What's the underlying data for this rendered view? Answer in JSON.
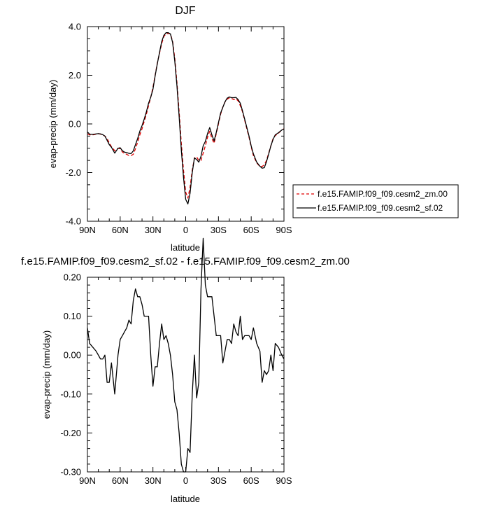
{
  "chart_data": [
    {
      "type": "line",
      "title": "DJF",
      "xlabel": "latitude",
      "ylabel": "evap-precip (mm/day)",
      "xlim": [
        90,
        -90
      ],
      "ylim": [
        -4.0,
        4.0
      ],
      "x_ticks": [
        90,
        60,
        30,
        0,
        -30,
        -60,
        -90
      ],
      "x_tick_labels": [
        "90N",
        "60N",
        "30N",
        "0",
        "30S",
        "60S",
        "90S"
      ],
      "y_ticks": [
        -4.0,
        -2.0,
        0.0,
        2.0,
        4.0
      ],
      "y_tick_labels": [
        "-4.0",
        "-2.0",
        "0.0",
        "2.0",
        "4.0"
      ],
      "legend": "right",
      "colors": {
        "zm": "#e00000",
        "sf": "#000000"
      },
      "series": [
        {
          "name": "f.e15.FAMIP.f09_f09.cesm2_zm.00",
          "style": "dashed",
          "color": "#e00000",
          "x": [
            90,
            88,
            85,
            82,
            80,
            78,
            76,
            74,
            72,
            70,
            68,
            65,
            62,
            60,
            58,
            56,
            54,
            52,
            50,
            48,
            46,
            44,
            42,
            40,
            38,
            36,
            34,
            32,
            30,
            28,
            26,
            24,
            22,
            20,
            18,
            16,
            14,
            12,
            10,
            8,
            6,
            4,
            2,
            0,
            -2,
            -4,
            -6,
            -8,
            -10,
            -12,
            -14,
            -16,
            -18,
            -20,
            -22,
            -24,
            -26,
            -28,
            -30,
            -32,
            -34,
            -36,
            -38,
            -40,
            -42,
            -44,
            -46,
            -48,
            -50,
            -52,
            -54,
            -56,
            -58,
            -60,
            -62,
            -65,
            -68,
            -70,
            -72,
            -74,
            -76,
            -78,
            -80,
            -82,
            -85,
            -88,
            -90
          ],
          "y": [
            -0.4,
            -0.45,
            -0.45,
            -0.42,
            -0.4,
            -0.42,
            -0.45,
            -0.5,
            -0.6,
            -0.78,
            -0.94,
            -1.1,
            -1.0,
            -1.02,
            -1.15,
            -1.22,
            -1.25,
            -1.3,
            -1.3,
            -1.25,
            -1.02,
            -0.75,
            -0.45,
            -0.2,
            0.1,
            0.4,
            0.75,
            1.1,
            1.5,
            2.0,
            2.5,
            2.9,
            3.3,
            3.6,
            3.7,
            3.72,
            3.7,
            3.4,
            2.7,
            1.7,
            0.5,
            -0.8,
            -1.9,
            -2.8,
            -3.05,
            -2.6,
            -1.9,
            -1.4,
            -1.35,
            -1.5,
            -1.5,
            -1.2,
            -0.9,
            -0.55,
            -0.3,
            -0.6,
            -0.8,
            -0.4,
            0.0,
            0.4,
            0.7,
            0.9,
            1.02,
            1.07,
            1.05,
            1.0,
            1.03,
            0.95,
            0.75,
            0.5,
            0.15,
            -0.2,
            -0.55,
            -0.95,
            -1.3,
            -1.6,
            -1.75,
            -1.75,
            -1.68,
            -1.5,
            -1.2,
            -0.9,
            -0.6,
            -0.48,
            -0.38,
            -0.25,
            -0.2
          ]
        },
        {
          "name": "f.e15.FAMIP.f09_f09.cesm2_sf.02",
          "style": "solid",
          "color": "#000000",
          "x": [
            90,
            88,
            85,
            82,
            80,
            78,
            76,
            74,
            72,
            70,
            68,
            65,
            62,
            60,
            58,
            56,
            54,
            52,
            50,
            48,
            46,
            44,
            42,
            40,
            38,
            36,
            34,
            32,
            30,
            28,
            26,
            24,
            22,
            20,
            18,
            16,
            14,
            12,
            10,
            8,
            6,
            4,
            2,
            0,
            -2,
            -4,
            -6,
            -8,
            -10,
            -12,
            -14,
            -16,
            -18,
            -20,
            -22,
            -24,
            -26,
            -28,
            -30,
            -32,
            -34,
            -36,
            -38,
            -40,
            -42,
            -44,
            -46,
            -48,
            -50,
            -52,
            -54,
            -56,
            -58,
            -60,
            -62,
            -65,
            -68,
            -70,
            -72,
            -74,
            -76,
            -78,
            -80,
            -82,
            -85,
            -88,
            -90
          ],
          "y": [
            -0.33,
            -0.42,
            -0.43,
            -0.41,
            -0.4,
            -0.41,
            -0.44,
            -0.5,
            -0.67,
            -0.85,
            -0.96,
            -1.2,
            -1.0,
            -0.98,
            -1.1,
            -1.16,
            -1.18,
            -1.21,
            -1.22,
            -1.11,
            -0.85,
            -0.6,
            -0.3,
            -0.07,
            0.2,
            0.5,
            0.85,
            1.1,
            1.42,
            1.97,
            2.47,
            2.93,
            3.38,
            3.64,
            3.75,
            3.75,
            3.7,
            3.35,
            2.58,
            1.56,
            0.3,
            -1.08,
            -2.2,
            -3.1,
            -3.29,
            -2.85,
            -2.0,
            -1.4,
            -1.46,
            -1.57,
            -1.33,
            -0.9,
            -0.72,
            -0.4,
            -0.15,
            -0.45,
            -0.7,
            -0.35,
            0.05,
            0.45,
            0.68,
            0.91,
            1.06,
            1.11,
            1.08,
            1.08,
            1.09,
            1.0,
            0.85,
            0.54,
            0.2,
            -0.15,
            -0.5,
            -0.91,
            -1.23,
            -1.57,
            -1.74,
            -1.82,
            -1.8,
            -1.55,
            -1.24,
            -0.9,
            -0.64,
            -0.45,
            -0.36,
            -0.25,
            -0.21
          ]
        }
      ]
    },
    {
      "type": "line",
      "title": "f.e15.FAMIP.f09_f09.cesm2_sf.02 - f.e15.FAMIP.f09_f09.cesm2_zm.00",
      "xlabel": "latitude",
      "ylabel": "evap-precip (mm/day)",
      "xlim": [
        90,
        -90
      ],
      "ylim": [
        -0.3,
        0.2
      ],
      "x_ticks": [
        90,
        60,
        30,
        0,
        -30,
        -60,
        -90
      ],
      "x_tick_labels": [
        "90N",
        "60N",
        "30N",
        "0",
        "30S",
        "60S",
        "90S"
      ],
      "y_ticks": [
        -0.3,
        -0.2,
        -0.1,
        0.0,
        0.1,
        0.2
      ],
      "y_tick_labels": [
        "-0.30",
        "-0.20",
        "-0.10",
        "0.00",
        "0.10",
        "0.20"
      ],
      "colors": {
        "line": "#000000"
      },
      "series": [
        {
          "color": "#000000",
          "x": [
            90,
            88,
            85,
            82,
            80,
            78,
            76,
            74,
            72,
            70,
            68,
            65,
            62,
            60,
            58,
            56,
            54,
            52,
            50,
            48,
            46,
            44,
            42,
            40,
            38,
            36,
            34,
            32,
            30,
            28,
            26,
            24,
            22,
            20,
            18,
            16,
            14,
            12,
            10,
            8,
            6,
            4,
            2,
            0,
            -2,
            -4,
            -6,
            -8,
            -10,
            -12,
            -14,
            -16,
            -18,
            -20,
            -22,
            -24,
            -26,
            -28,
            -30,
            -32,
            -34,
            -36,
            -38,
            -40,
            -42,
            -44,
            -46,
            -48,
            -50,
            -52,
            -54,
            -56,
            -58,
            -60,
            -62,
            -65,
            -68,
            -70,
            -72,
            -74,
            -76,
            -78,
            -80,
            -82,
            -85,
            -88,
            -90
          ],
          "y": [
            0.07,
            0.03,
            0.02,
            0.01,
            0.0,
            -0.01,
            -0.01,
            0.0,
            -0.07,
            -0.07,
            -0.02,
            -0.1,
            0.0,
            0.04,
            0.05,
            0.06,
            0.07,
            0.09,
            0.08,
            0.14,
            0.17,
            0.15,
            0.15,
            0.13,
            0.1,
            0.1,
            0.1,
            0.0,
            -0.08,
            -0.03,
            -0.03,
            0.03,
            0.08,
            0.04,
            0.05,
            0.03,
            0.0,
            -0.05,
            -0.12,
            -0.14,
            -0.2,
            -0.28,
            -0.3,
            -0.3,
            -0.24,
            -0.25,
            -0.1,
            0.0,
            -0.11,
            -0.07,
            0.17,
            0.3,
            0.18,
            0.15,
            0.15,
            0.15,
            0.1,
            0.05,
            0.05,
            0.05,
            -0.02,
            0.01,
            0.04,
            0.04,
            0.03,
            0.08,
            0.06,
            0.05,
            0.1,
            0.04,
            0.05,
            0.05,
            0.05,
            0.04,
            0.07,
            0.03,
            0.01,
            -0.07,
            -0.04,
            -0.05,
            -0.04,
            0.0,
            -0.04,
            0.03,
            0.02,
            0.0,
            -0.01
          ]
        }
      ]
    }
  ],
  "legend": {
    "items": [
      {
        "label": "f.e15.FAMIP.f09_f09.cesm2_zm.00",
        "style": "dashed",
        "color": "#e00000"
      },
      {
        "label": "f.e15.FAMIP.f09_f09.cesm2_sf.02",
        "style": "solid",
        "color": "#000000"
      }
    ]
  }
}
